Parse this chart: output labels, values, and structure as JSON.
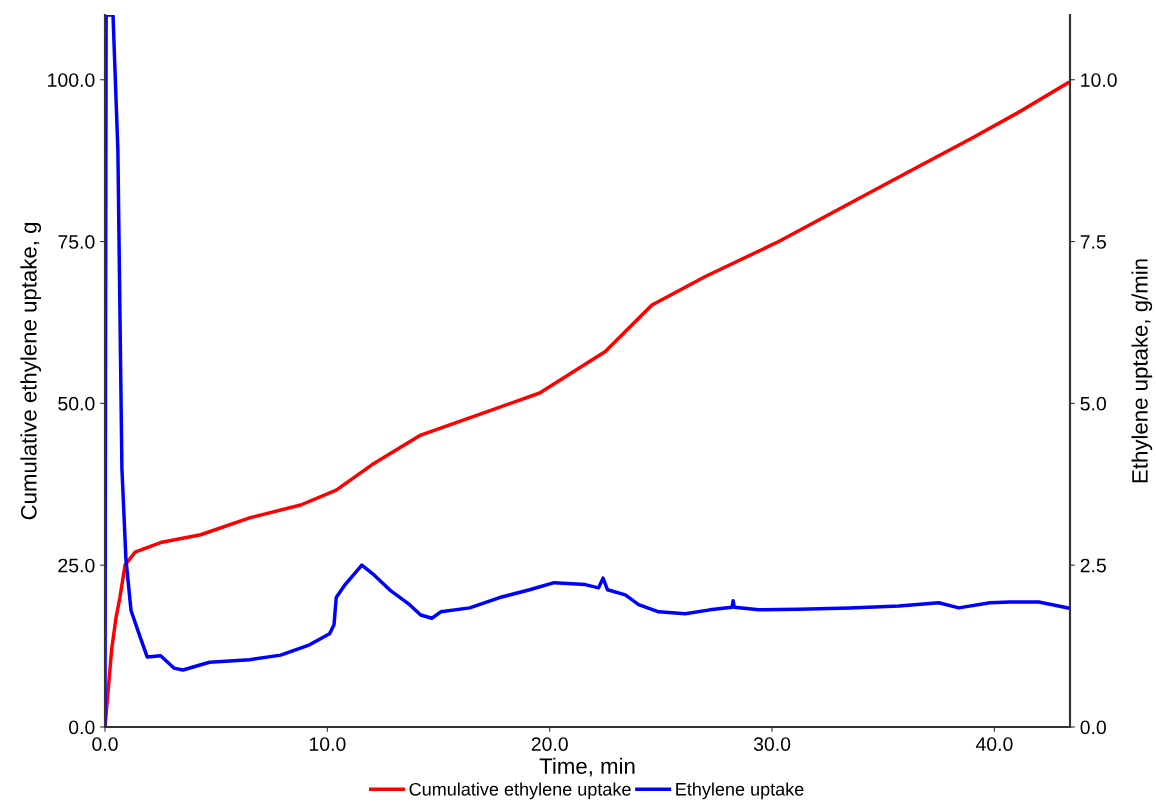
{
  "chart_data": {
    "type": "line",
    "xlabel": "Time, min",
    "ylabel": "Cumulative ethylene uptake, g",
    "y2label": "Ethylene uptake, g/min",
    "xlim": [
      0,
      43.4
    ],
    "xticks": [
      {
        "value": 0,
        "label": "0.0"
      },
      {
        "value": 10,
        "label": "10.0"
      },
      {
        "value": 20,
        "label": "20.0"
      },
      {
        "value": 30,
        "label": "30.0"
      },
      {
        "value": 40,
        "label": "40.0"
      }
    ],
    "ylim": [
      0,
      110
    ],
    "yticks": [
      {
        "value": 0,
        "label": "0.0"
      },
      {
        "value": 25,
        "label": "25.0"
      },
      {
        "value": 50,
        "label": "50.0"
      },
      {
        "value": 75,
        "label": "75.0"
      },
      {
        "value": 100,
        "label": "100.0"
      }
    ],
    "y2lim": [
      0,
      11
    ],
    "y2ticks": [
      {
        "value": 0,
        "label": "0.0"
      },
      {
        "value": 2.5,
        "label": "2.5"
      },
      {
        "value": 5,
        "label": "5.0"
      },
      {
        "value": 7.5,
        "label": "7.5"
      },
      {
        "value": 10,
        "label": "10.0"
      }
    ],
    "grid": false,
    "legend": "bottom",
    "marker": "none",
    "line_style": "solid",
    "series": [
      {
        "name": "Cumulative ethylene uptake",
        "color": "#ff0000",
        "x": [
          0,
          0.3,
          0.5,
          0.67,
          0.9,
          1.35,
          2.5,
          4.3,
          6.5,
          8.8,
          10.4,
          12,
          14.2,
          17,
          19.55,
          22.5,
          24.6,
          27,
          30.3,
          33,
          36,
          39,
          41,
          43.3
        ],
        "values": [
          0,
          12,
          17,
          20,
          25,
          27,
          28.5,
          29.7,
          32.3,
          34.3,
          36.6,
          40.5,
          45.1,
          48.5,
          51.6,
          58,
          65.2,
          69.6,
          75,
          80,
          85.5,
          91,
          94.8,
          99.5
        ]
      },
      {
        "name": "Ethylene uptake",
        "color": "#0000ff",
        "axis": "y2",
        "x": [
          0,
          0.02,
          0.05,
          0.36,
          0.58,
          0.76,
          0.94,
          1.17,
          1.57,
          1.9,
          2.5,
          3.1,
          3.5,
          4.7,
          6.5,
          7.9,
          9.2,
          10.1,
          10.3,
          10.4,
          10.8,
          11.55,
          12.1,
          12.8,
          13.7,
          14.2,
          14.7,
          15.1,
          16.4,
          17.75,
          19.1,
          20.2,
          21.6,
          22.2,
          22.4,
          22.6,
          23.4,
          24.0,
          24.9,
          26.1,
          27.2,
          28.2,
          28.25,
          28.3,
          29.4,
          31.2,
          33.5,
          35.7,
          37.5,
          38.4,
          39.8,
          40.7,
          42.0,
          43.3
        ],
        "values": [
          0,
          5,
          11,
          11,
          8.9,
          4.0,
          2.6,
          1.8,
          1.4,
          1.08,
          1.1,
          0.91,
          0.88,
          1.0,
          1.04,
          1.11,
          1.27,
          1.44,
          1.58,
          2.0,
          2.2,
          2.5,
          2.35,
          2.12,
          1.89,
          1.73,
          1.68,
          1.78,
          1.84,
          2.0,
          2.12,
          2.23,
          2.2,
          2.15,
          2.3,
          2.12,
          2.04,
          1.89,
          1.78,
          1.75,
          1.81,
          1.85,
          1.95,
          1.85,
          1.81,
          1.82,
          1.84,
          1.87,
          1.92,
          1.84,
          1.92,
          1.93,
          1.93,
          1.84
        ]
      }
    ]
  }
}
